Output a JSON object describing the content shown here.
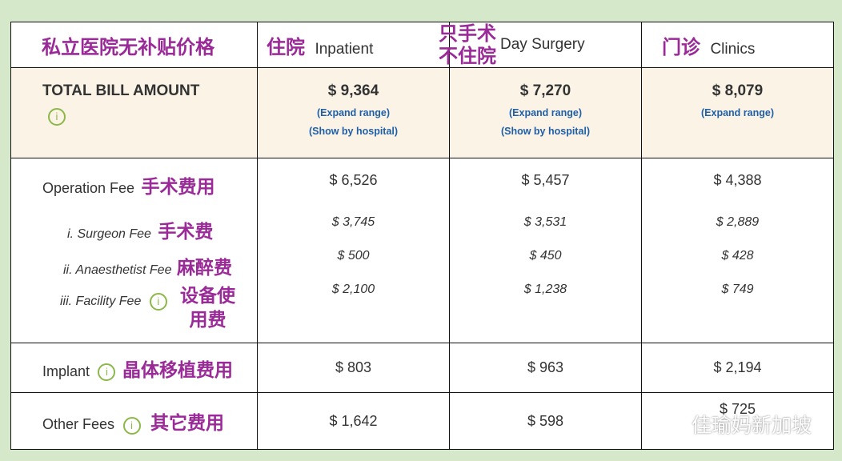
{
  "header": {
    "corner_note": "私立医院无补贴价格",
    "columns": [
      {
        "zh": "住院",
        "en": "Inpatient"
      },
      {
        "zh": "只手术\n不住院",
        "zh1": "只手术",
        "zh2": "不住院",
        "en": "Day Surgery"
      },
      {
        "zh": "门诊",
        "en": "Clinics"
      }
    ]
  },
  "total": {
    "label": "TOTAL BILL AMOUNT",
    "values": [
      "$ 9,364",
      "$ 7,270",
      "$ 8,079"
    ],
    "expand_label": "(Expand range)",
    "hospital_label": "(Show by hospital)"
  },
  "operation": {
    "label": "Operation Fee",
    "zh": "手术费用",
    "values": [
      "$ 6,526",
      "$ 5,457",
      "$ 4,388"
    ],
    "subs": [
      {
        "label": "i. Surgeon Fee",
        "zh": "手术费",
        "values": [
          "$ 3,745",
          "$ 3,531",
          "$ 2,889"
        ]
      },
      {
        "label": "ii. Anaesthetist Fee",
        "zh": "麻醉费",
        "values": [
          "$ 500",
          "$ 450",
          "$ 428"
        ]
      },
      {
        "label": "iii. Facility Fee",
        "zh1": "设备使",
        "zh2": "用费",
        "values": [
          "$ 2,100",
          "$ 1,238",
          "$ 749"
        ]
      }
    ]
  },
  "implant": {
    "label": "Implant",
    "zh": "晶体移植费用",
    "values": [
      "$ 803",
      "$ 963",
      "$ 2,194"
    ]
  },
  "other": {
    "label": "Other Fees",
    "zh": "其它费用",
    "values": [
      "$ 1,642",
      "$ 598",
      "$ 725"
    ]
  },
  "watermark": "佳瑜妈新加坡",
  "icons": {
    "info": "info-icon",
    "wechat": "wechat-icon"
  },
  "colors": {
    "background": "#d5e8c9",
    "annotation": "#9a2a98",
    "link": "#1f5fa8",
    "info": "#8cb84a",
    "total_row": "#faf3e6"
  }
}
